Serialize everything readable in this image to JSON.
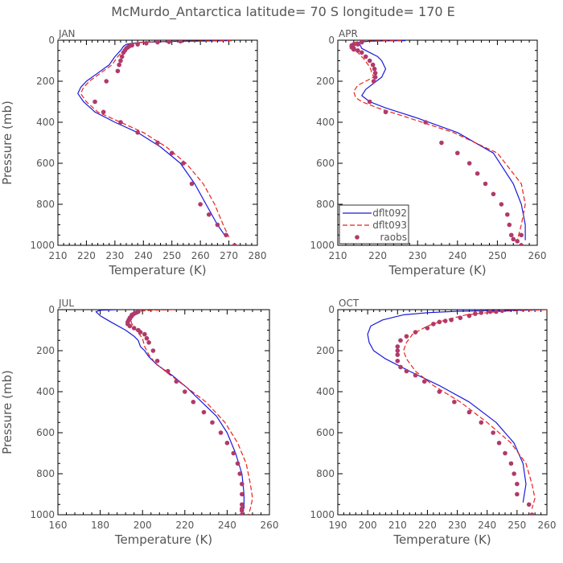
{
  "title": "McMurdo_Antarctica   latitude= 70 S longitude= 170 E",
  "colors": {
    "dflt092": "#1a1adb",
    "dflt093": "#e8231c",
    "raobs": "#b03a6a",
    "axis": "#000000",
    "text": "#555555"
  },
  "legend": {
    "panel": "APR",
    "position": "lower-left",
    "entries": [
      {
        "label": "dflt092",
        "style": "solid"
      },
      {
        "label": "dflt093",
        "style": "dashed"
      },
      {
        "label": "raobs",
        "style": "dots"
      }
    ]
  },
  "chart_data": [
    {
      "type": "line",
      "panel": "JAN",
      "xlabel": "Temperature (K)",
      "ylabel": "Pressure (mb)",
      "xlim": [
        210,
        280
      ],
      "ylim": [
        1000,
        0
      ],
      "xticks": [
        210,
        220,
        230,
        240,
        250,
        260,
        270,
        280
      ],
      "yticks": [
        0,
        200,
        400,
        600,
        800,
        1000
      ],
      "series": [
        {
          "name": "dflt092",
          "x": [
            271,
            262,
            250,
            245,
            240,
            236,
            234,
            233,
            232,
            230,
            228,
            224,
            220,
            218,
            217,
            219,
            223,
            230,
            238,
            246,
            253,
            258,
            262,
            266,
            269
          ],
          "y": [
            2,
            4,
            6,
            8,
            10,
            15,
            20,
            30,
            50,
            80,
            120,
            160,
            200,
            230,
            260,
            300,
            350,
            400,
            450,
            520,
            600,
            700,
            800,
            900,
            960
          ]
        },
        {
          "name": "dflt093",
          "x": [
            271,
            262,
            250,
            245,
            240,
            237,
            235,
            234,
            233,
            231,
            229,
            225,
            221,
            219,
            218,
            220,
            224,
            232,
            240,
            248,
            255,
            261,
            265,
            268,
            270
          ],
          "y": [
            2,
            4,
            6,
            8,
            10,
            15,
            20,
            30,
            50,
            80,
            120,
            160,
            200,
            230,
            260,
            300,
            350,
            400,
            450,
            520,
            600,
            700,
            800,
            900,
            960
          ]
        },
        {
          "name": "raobs",
          "x": [
            253,
            249,
            245,
            241,
            238,
            236,
            235,
            234.5,
            234,
            233.5,
            233,
            232.5,
            232,
            231.5,
            231,
            227,
            223,
            226,
            232,
            238,
            245,
            250,
            254,
            257,
            260,
            263,
            266,
            269,
            272
          ],
          "y": [
            5,
            8,
            10,
            15,
            20,
            25,
            30,
            35,
            40,
            50,
            60,
            80,
            100,
            120,
            150,
            200,
            300,
            350,
            400,
            450,
            500,
            550,
            600,
            700,
            800,
            850,
            900,
            950,
            1000
          ]
        }
      ]
    },
    {
      "type": "line",
      "panel": "APR",
      "xlabel": "Temperature (K)",
      "ylabel": "Pressure (mb)",
      "xlim": [
        210,
        260
      ],
      "ylim": [
        1000,
        0
      ],
      "xticks": [
        210,
        220,
        230,
        240,
        250,
        260
      ],
      "yticks": [
        0,
        200,
        400,
        600,
        800,
        1000
      ],
      "series": [
        {
          "name": "dflt092",
          "x": [
            227,
            222,
            218,
            216,
            215,
            215.5,
            216,
            218,
            220,
            221,
            222,
            221,
            219,
            217,
            216,
            218,
            222,
            230,
            240,
            249,
            254,
            256,
            257,
            257
          ],
          "y": [
            2,
            3,
            5,
            8,
            12,
            20,
            40,
            60,
            80,
            100,
            140,
            180,
            210,
            240,
            270,
            300,
            330,
            380,
            450,
            550,
            700,
            800,
            900,
            975
          ]
        },
        {
          "name": "dflt093",
          "x": [
            226,
            221,
            217,
            215,
            214,
            213.7,
            214,
            215,
            216.5,
            218,
            219,
            217,
            215,
            214,
            214.5,
            216,
            220,
            228,
            239,
            250,
            256,
            257,
            256,
            255
          ],
          "y": [
            2,
            3,
            5,
            8,
            12,
            20,
            40,
            60,
            90,
            130,
            180,
            200,
            220,
            250,
            280,
            300,
            330,
            380,
            450,
            550,
            700,
            800,
            900,
            975
          ]
        },
        {
          "name": "raobs",
          "x": [
            216,
            215,
            214,
            213.5,
            213.5,
            213.5,
            214,
            214,
            215,
            216,
            217,
            218,
            218.8,
            219.2,
            219.4,
            219.4,
            219,
            218,
            222,
            232,
            236,
            240,
            243,
            245,
            247,
            249,
            251,
            252.5,
            253,
            253.5,
            254,
            255,
            256,
            256
          ],
          "y": [
            10,
            20,
            20,
            25,
            30,
            35,
            40,
            45,
            50,
            60,
            80,
            100,
            120,
            140,
            160,
            180,
            200,
            300,
            350,
            400,
            500,
            550,
            600,
            650,
            700,
            750,
            800,
            850,
            900,
            950,
            970,
            980,
            950,
            1000
          ]
        }
      ]
    },
    {
      "type": "line",
      "panel": "JUL",
      "xlabel": "Temperature (K)",
      "ylabel": "Pressure (mb)",
      "xlim": [
        160,
        260
      ],
      "ylim": [
        1000,
        0
      ],
      "xticks": [
        160,
        180,
        200,
        220,
        240,
        260
      ],
      "yticks": [
        0,
        200,
        400,
        600,
        800,
        1000
      ],
      "series": [
        {
          "name": "dflt092",
          "x": [
            188,
            180,
            178,
            180,
            185,
            192,
            196,
            198,
            199,
            201,
            203,
            207,
            214,
            221,
            228,
            235,
            240,
            244,
            247,
            248,
            248,
            248
          ],
          "y": [
            0,
            3,
            10,
            30,
            60,
            100,
            130,
            150,
            180,
            200,
            230,
            270,
            320,
            380,
            450,
            520,
            600,
            700,
            800,
            900,
            940,
            970
          ]
        },
        {
          "name": "dflt093",
          "x": [
            215,
            204,
            198,
            195,
            194,
            195,
            197,
            200,
            201,
            203,
            206,
            212,
            221,
            230,
            239,
            245,
            249,
            251,
            252,
            251,
            250
          ],
          "y": [
            0,
            3,
            8,
            20,
            40,
            70,
            100,
            140,
            180,
            220,
            260,
            310,
            380,
            450,
            550,
            650,
            750,
            850,
            920,
            970,
            1000
          ]
        },
        {
          "name": "raobs",
          "x": [
            198,
            197,
            196,
            195,
            195,
            194.5,
            194,
            194,
            193.5,
            193,
            193,
            194,
            196,
            198,
            199,
            201,
            202,
            203,
            205,
            207,
            212,
            216,
            220,
            224,
            229,
            233,
            237,
            240,
            243,
            245,
            246,
            247,
            247,
            247,
            247,
            247,
            247
          ],
          "y": [
            10,
            15,
            20,
            25,
            30,
            35,
            40,
            45,
            50,
            60,
            70,
            80,
            90,
            100,
            110,
            120,
            140,
            160,
            200,
            250,
            300,
            350,
            400,
            450,
            500,
            550,
            600,
            650,
            700,
            750,
            800,
            850,
            900,
            950,
            970,
            1000,
            980
          ]
        }
      ]
    },
    {
      "type": "line",
      "panel": "OCT",
      "xlabel": "Temperature (K)",
      "ylabel": "Pressure (mb)",
      "xlim": [
        190,
        260
      ],
      "ylim": [
        1000,
        0
      ],
      "xticks": [
        190,
        200,
        210,
        220,
        230,
        240,
        250,
        260
      ],
      "yticks": [
        0,
        200,
        400,
        600,
        800,
        1000
      ],
      "series": [
        {
          "name": "dflt092",
          "x": [
            258,
            250,
            240,
            230,
            220,
            212,
            205,
            201,
            200,
            200.5,
            202,
            206,
            214,
            224,
            234,
            243,
            249,
            252,
            253,
            252
          ],
          "y": [
            0,
            3,
            5,
            8,
            15,
            25,
            50,
            80,
            120,
            160,
            200,
            240,
            300,
            370,
            450,
            550,
            650,
            750,
            850,
            940
          ]
        },
        {
          "name": "dflt093",
          "x": [
            260,
            255,
            250,
            245,
            240,
            233,
            226,
            220,
            215,
            213,
            212,
            213,
            216,
            222,
            231,
            240,
            248,
            253,
            255,
            256,
            255
          ],
          "y": [
            0,
            3,
            5,
            8,
            15,
            25,
            50,
            80,
            120,
            160,
            200,
            240,
            300,
            370,
            450,
            550,
            650,
            750,
            850,
            920,
            970
          ]
        },
        {
          "name": "raobs",
          "x": [
            245,
            243,
            241,
            238,
            236,
            234,
            231,
            228,
            226,
            224,
            222,
            220,
            216,
            213,
            211,
            210,
            210,
            210,
            210,
            211,
            213,
            216,
            219,
            224,
            229,
            234,
            238,
            242,
            244,
            246,
            248,
            249,
            250,
            250,
            254,
            255
          ],
          "y": [
            5,
            10,
            10,
            15,
            20,
            30,
            40,
            50,
            55,
            60,
            70,
            90,
            110,
            130,
            150,
            180,
            200,
            220,
            250,
            280,
            300,
            320,
            350,
            400,
            450,
            500,
            550,
            600,
            650,
            700,
            750,
            800,
            850,
            900,
            950,
            1000
          ]
        }
      ]
    }
  ]
}
